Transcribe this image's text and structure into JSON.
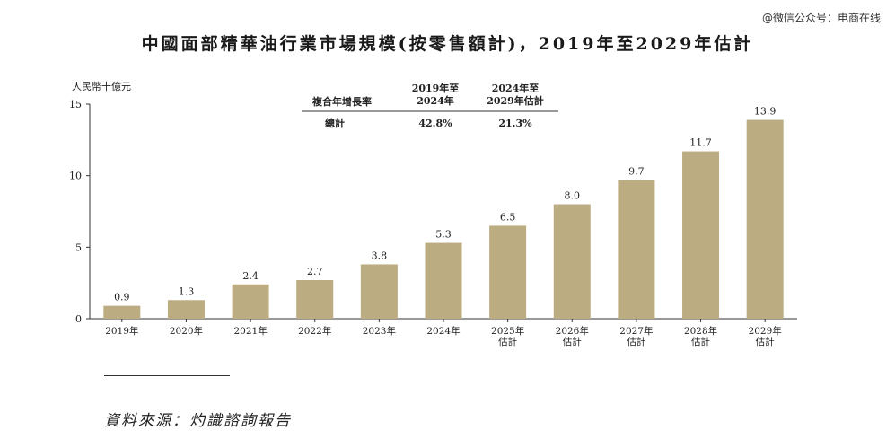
{
  "title": "中國面部精華油行業市場規模(按零售額計)，2019年至2029年估計",
  "watermark": "@微信公众号：电商在线",
  "source": "資料來源：灼識諮詢報告",
  "cagr_table": {
    "header_label": "複合年增長率",
    "col1_line1": "2019年至",
    "col1_line2": "2024年",
    "col2_line1": "2024年至",
    "col2_line2": "2029年估計",
    "row_label": "總計",
    "value1": "42.8%",
    "value2": "21.3%"
  },
  "colors": {
    "bar": "#bcac82",
    "axis": "#333333"
  },
  "chart_data": {
    "type": "bar",
    "ylabel": "人民幣十億元",
    "ylim": [
      0,
      15
    ],
    "yticks": [
      0,
      5,
      10,
      15
    ],
    "grid": false,
    "categories": [
      [
        "2019年"
      ],
      [
        "2020年"
      ],
      [
        "2021年"
      ],
      [
        "2022年"
      ],
      [
        "2023年"
      ],
      [
        "2024年"
      ],
      [
        "2025年",
        "估計"
      ],
      [
        "2026年",
        "估計"
      ],
      [
        "2027年",
        "估計"
      ],
      [
        "2028年",
        "估計"
      ],
      [
        "2029年",
        "估計"
      ]
    ],
    "values": [
      0.9,
      1.3,
      2.4,
      2.7,
      3.8,
      5.3,
      6.5,
      8.0,
      9.7,
      11.7,
      13.9
    ],
    "value_labels": [
      "0.9",
      "1.3",
      "2.4",
      "2.7",
      "3.8",
      "5.3",
      "6.5",
      "8.0",
      "9.7",
      "11.7",
      "13.9"
    ]
  }
}
